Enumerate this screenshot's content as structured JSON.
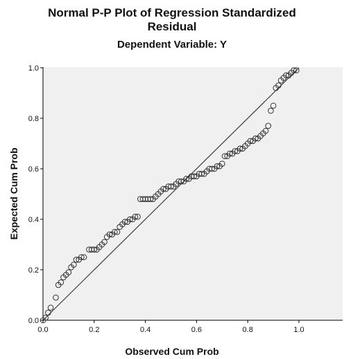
{
  "chart_data": {
    "type": "scatter",
    "title_lines": [
      "Normal P-P Plot of Regression Standardized",
      "Residual"
    ],
    "subtitle": "Dependent Variable: Y",
    "xlabel": "Observed Cum Prob",
    "ylabel": "Expected Cum Prob",
    "xlim": [
      0,
      1
    ],
    "ylim": [
      0,
      1
    ],
    "x_ticks": [
      "0.0",
      "0.2",
      "0.4",
      "0.6",
      "0.8",
      "1.0"
    ],
    "y_ticks": [
      "0.0",
      "0.2",
      "0.4",
      "0.6",
      "0.8",
      "1.0"
    ],
    "grid": false,
    "background_color": "#f0f0f0",
    "marker_color": "#333333",
    "reference_line": [
      [
        0,
        0
      ],
      [
        1,
        1
      ]
    ],
    "points": [
      [
        0.0,
        0.0
      ],
      [
        0.01,
        0.01
      ],
      [
        0.02,
        0.03
      ],
      [
        0.03,
        0.05
      ],
      [
        0.05,
        0.09
      ],
      [
        0.06,
        0.14
      ],
      [
        0.07,
        0.15
      ],
      [
        0.08,
        0.17
      ],
      [
        0.09,
        0.18
      ],
      [
        0.1,
        0.19
      ],
      [
        0.11,
        0.21
      ],
      [
        0.12,
        0.22
      ],
      [
        0.13,
        0.24
      ],
      [
        0.14,
        0.24
      ],
      [
        0.15,
        0.25
      ],
      [
        0.16,
        0.25
      ],
      [
        0.18,
        0.28
      ],
      [
        0.19,
        0.28
      ],
      [
        0.2,
        0.28
      ],
      [
        0.21,
        0.28
      ],
      [
        0.22,
        0.29
      ],
      [
        0.23,
        0.3
      ],
      [
        0.24,
        0.31
      ],
      [
        0.25,
        0.33
      ],
      [
        0.26,
        0.34
      ],
      [
        0.27,
        0.34
      ],
      [
        0.28,
        0.35
      ],
      [
        0.29,
        0.35
      ],
      [
        0.3,
        0.37
      ],
      [
        0.31,
        0.38
      ],
      [
        0.32,
        0.39
      ],
      [
        0.33,
        0.39
      ],
      [
        0.34,
        0.4
      ],
      [
        0.35,
        0.4
      ],
      [
        0.36,
        0.41
      ],
      [
        0.37,
        0.41
      ],
      [
        0.38,
        0.48
      ],
      [
        0.39,
        0.48
      ],
      [
        0.4,
        0.48
      ],
      [
        0.41,
        0.48
      ],
      [
        0.42,
        0.48
      ],
      [
        0.43,
        0.48
      ],
      [
        0.44,
        0.49
      ],
      [
        0.45,
        0.5
      ],
      [
        0.46,
        0.51
      ],
      [
        0.47,
        0.52
      ],
      [
        0.48,
        0.52
      ],
      [
        0.49,
        0.53
      ],
      [
        0.5,
        0.53
      ],
      [
        0.51,
        0.53
      ],
      [
        0.52,
        0.54
      ],
      [
        0.53,
        0.55
      ],
      [
        0.54,
        0.55
      ],
      [
        0.55,
        0.55
      ],
      [
        0.56,
        0.56
      ],
      [
        0.57,
        0.56
      ],
      [
        0.58,
        0.57
      ],
      [
        0.59,
        0.57
      ],
      [
        0.6,
        0.57
      ],
      [
        0.61,
        0.58
      ],
      [
        0.62,
        0.58
      ],
      [
        0.63,
        0.58
      ],
      [
        0.64,
        0.59
      ],
      [
        0.65,
        0.6
      ],
      [
        0.66,
        0.6
      ],
      [
        0.67,
        0.6
      ],
      [
        0.68,
        0.61
      ],
      [
        0.69,
        0.61
      ],
      [
        0.7,
        0.62
      ],
      [
        0.71,
        0.65
      ],
      [
        0.72,
        0.65
      ],
      [
        0.73,
        0.66
      ],
      [
        0.74,
        0.66
      ],
      [
        0.75,
        0.67
      ],
      [
        0.76,
        0.67
      ],
      [
        0.77,
        0.68
      ],
      [
        0.78,
        0.68
      ],
      [
        0.79,
        0.69
      ],
      [
        0.8,
        0.7
      ],
      [
        0.81,
        0.71
      ],
      [
        0.82,
        0.71
      ],
      [
        0.83,
        0.72
      ],
      [
        0.84,
        0.72
      ],
      [
        0.85,
        0.73
      ],
      [
        0.86,
        0.74
      ],
      [
        0.87,
        0.75
      ],
      [
        0.88,
        0.77
      ],
      [
        0.89,
        0.83
      ],
      [
        0.9,
        0.85
      ],
      [
        0.91,
        0.92
      ],
      [
        0.92,
        0.93
      ],
      [
        0.93,
        0.95
      ],
      [
        0.94,
        0.96
      ],
      [
        0.95,
        0.97
      ],
      [
        0.96,
        0.97
      ],
      [
        0.97,
        0.98
      ],
      [
        0.98,
        0.99
      ],
      [
        0.99,
        0.99
      ]
    ]
  }
}
